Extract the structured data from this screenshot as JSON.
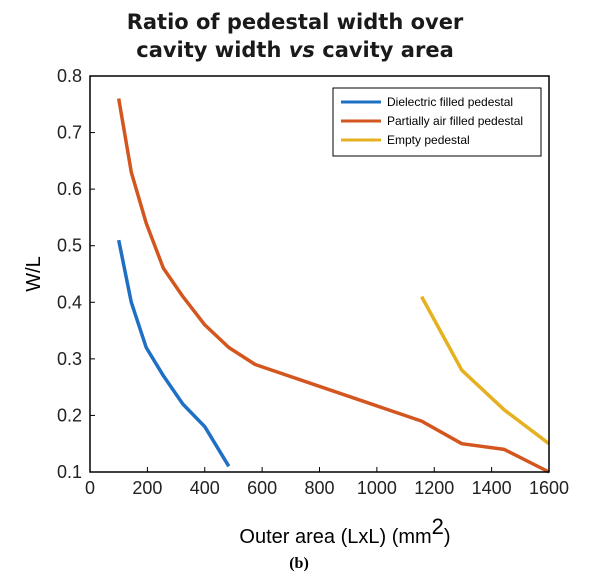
{
  "chart_data": {
    "type": "line",
    "title_line1": "Ratio of pedestal width over",
    "title_line2_a": "cavity width ",
    "title_line2_em": "vs",
    "title_line2_b": " cavity area",
    "xlabel": "Outer area (LxL) (mm",
    "xlabel_sup": "2",
    "xlabel_close": ")",
    "ylabel": "W/L",
    "xlim": [
      0,
      1600
    ],
    "ylim": [
      0.1,
      0.8
    ],
    "xticks": [
      0,
      200,
      400,
      600,
      800,
      1000,
      1200,
      1400,
      1600
    ],
    "yticks": [
      0.1,
      0.2,
      0.3,
      0.4,
      0.5,
      0.6,
      0.7,
      0.8
    ],
    "legend_position": "top-right",
    "series": [
      {
        "name": "Dielectric filled pedestal",
        "color": "#1f6fc5",
        "x": [
          100,
          144,
          196,
          256,
          324,
          400,
          484
        ],
        "y": [
          0.51,
          0.4,
          0.32,
          0.27,
          0.22,
          0.18,
          0.11
        ]
      },
      {
        "name": "Partially air filled pedestal",
        "color": "#d4561f",
        "x": [
          100,
          144,
          196,
          256,
          324,
          400,
          484,
          576,
          1156,
          1296,
          1444,
          1600
        ],
        "y": [
          0.76,
          0.63,
          0.54,
          0.46,
          0.41,
          0.36,
          0.32,
          0.29,
          0.19,
          0.15,
          0.14,
          0.1
        ]
      },
      {
        "name": "Empty pedestal",
        "color": "#e6b121",
        "x": [
          1156,
          1296,
          1444,
          1600
        ],
        "y": [
          0.41,
          0.28,
          0.21,
          0.15
        ]
      }
    ]
  },
  "caption": "(b)"
}
